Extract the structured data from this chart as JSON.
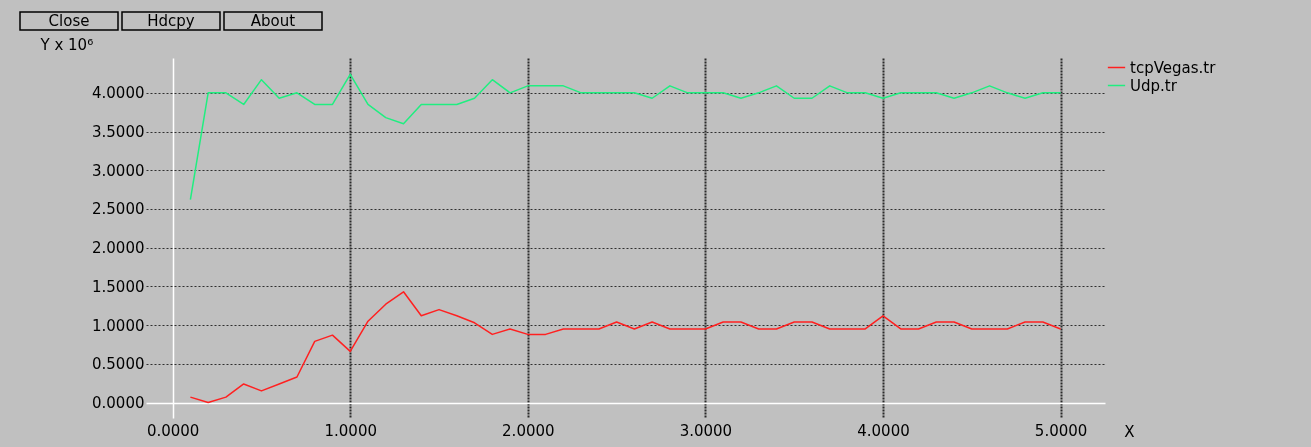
{
  "chart_data": {
    "type": "line",
    "ylabel": "Y x 10⁶",
    "xlabel": "X",
    "annotations": [
      "Close",
      "Hdcpy",
      "About"
    ],
    "x": [
      0.1,
      0.2,
      0.3,
      0.4,
      0.5,
      0.6,
      0.7,
      0.8,
      0.9,
      1.0,
      1.1,
      1.2,
      1.3,
      1.4,
      1.5,
      1.6,
      1.7,
      1.8,
      1.9,
      2.0,
      2.1,
      2.2,
      2.3,
      2.4,
      2.5,
      2.6,
      2.7,
      2.8,
      2.9,
      3.0,
      3.1,
      3.2,
      3.3,
      3.4,
      3.5,
      3.6,
      3.7,
      3.8,
      3.9,
      4.0,
      4.1,
      4.2,
      4.3,
      4.4,
      4.5,
      4.6,
      4.7,
      4.8,
      4.9,
      5.0
    ],
    "series": [
      {
        "name": "tcpVegas.tr",
        "color": "#ff2020",
        "values": [
          0.07,
          0.0,
          0.07,
          0.24,
          0.15,
          0.24,
          0.33,
          0.79,
          0.87,
          0.66,
          1.05,
          1.27,
          1.43,
          1.12,
          1.2,
          1.12,
          1.03,
          0.88,
          0.95,
          0.88,
          0.88,
          0.95,
          0.95,
          0.95,
          1.04,
          0.95,
          1.04,
          0.95,
          0.95,
          0.95,
          1.04,
          1.04,
          0.95,
          0.95,
          1.04,
          1.04,
          0.95,
          0.95,
          0.95,
          1.12,
          0.95,
          0.95,
          1.04,
          1.04,
          0.95,
          0.95,
          0.95,
          1.04,
          1.04,
          0.95
        ]
      },
      {
        "name": "Udp.tr",
        "color": "#20ee80",
        "values": [
          2.62,
          4.0,
          4.0,
          3.85,
          4.17,
          3.93,
          4.0,
          3.85,
          3.85,
          4.24,
          3.85,
          3.68,
          3.6,
          3.85,
          3.85,
          3.85,
          3.93,
          4.17,
          4.0,
          4.09,
          4.09,
          4.09,
          4.0,
          4.0,
          4.0,
          4.0,
          3.93,
          4.09,
          4.0,
          4.0,
          4.0,
          3.93,
          4.0,
          4.09,
          3.93,
          3.93,
          4.09,
          4.0,
          4.0,
          3.93,
          4.0,
          4.0,
          4.0,
          3.93,
          4.0,
          4.09,
          4.0,
          3.93,
          4.0,
          4.0
        ]
      }
    ],
    "xlim": [
      -0.15,
      5.25
    ],
    "ylim": [
      -0.2,
      4.45
    ],
    "xticks": [
      {
        "value": 0,
        "label": "0.0000"
      },
      {
        "value": 1,
        "label": "1.0000"
      },
      {
        "value": 2,
        "label": "2.0000"
      },
      {
        "value": 3,
        "label": "3.0000"
      },
      {
        "value": 4,
        "label": "4.0000"
      },
      {
        "value": 5,
        "label": "5.0000"
      }
    ],
    "yticks": [
      {
        "value": 0,
        "label": "0.0000"
      },
      {
        "value": 0.5,
        "label": "0.5000"
      },
      {
        "value": 1,
        "label": "1.0000"
      },
      {
        "value": 1.5,
        "label": "1.5000"
      },
      {
        "value": 2,
        "label": "2.0000"
      },
      {
        "value": 2.5,
        "label": "2.5000"
      },
      {
        "value": 3,
        "label": "3.0000"
      },
      {
        "value": 3.5,
        "label": "3.5000"
      },
      {
        "value": 4,
        "label": "4.0000"
      }
    ],
    "grid": true,
    "legend": "top right",
    "line_style": "solid"
  }
}
